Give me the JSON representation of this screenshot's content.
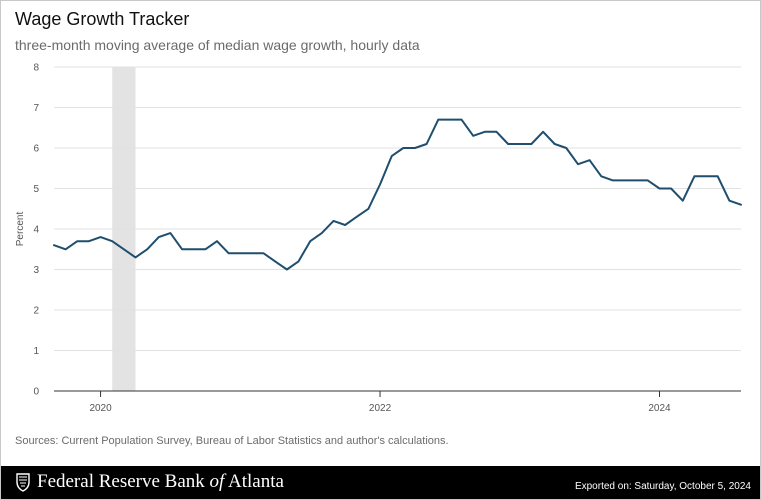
{
  "chart_data": {
    "type": "line",
    "title": "Wage Growth Tracker",
    "subtitle": "three-month moving average of median wage growth, hourly data",
    "xlabel": "",
    "ylabel": "Percent",
    "ylim": [
      0,
      8
    ],
    "xlim": [
      "2019-09",
      "2024-08"
    ],
    "yticks": [
      "0",
      "1",
      "2",
      "3",
      "4",
      "5",
      "6",
      "7",
      "8"
    ],
    "xticks": [
      "2020",
      "2022",
      "2024"
    ],
    "grid": true,
    "recession_shading": {
      "start": "2020-02",
      "end": "2020-04"
    },
    "line_color": "#1f4e6e",
    "series": [
      {
        "x": [
          "2019-09",
          "2019-10",
          "2019-11",
          "2019-12",
          "2020-01",
          "2020-02",
          "2020-03",
          "2020-04",
          "2020-05",
          "2020-06",
          "2020-07",
          "2020-08",
          "2020-09",
          "2020-10",
          "2020-11",
          "2020-12",
          "2021-01",
          "2021-02",
          "2021-03",
          "2021-04",
          "2021-05",
          "2021-06",
          "2021-07",
          "2021-08",
          "2021-09",
          "2021-10",
          "2021-11",
          "2021-12",
          "2022-01",
          "2022-02",
          "2022-03",
          "2022-04",
          "2022-05",
          "2022-06",
          "2022-07",
          "2022-08",
          "2022-09",
          "2022-10",
          "2022-11",
          "2022-12",
          "2023-01",
          "2023-02",
          "2023-03",
          "2023-04",
          "2023-05",
          "2023-06",
          "2023-07",
          "2023-08",
          "2023-09",
          "2023-10",
          "2023-11",
          "2023-12",
          "2024-01",
          "2024-02",
          "2024-03",
          "2024-04",
          "2024-05",
          "2024-06",
          "2024-07",
          "2024-08"
        ],
        "values": [
          3.6,
          3.5,
          3.7,
          3.7,
          3.8,
          3.7,
          3.5,
          3.3,
          3.5,
          3.8,
          3.9,
          3.5,
          3.5,
          3.5,
          3.7,
          3.4,
          3.4,
          3.4,
          3.4,
          3.2,
          3.0,
          3.2,
          3.7,
          3.9,
          4.2,
          4.1,
          4.3,
          4.5,
          5.1,
          5.8,
          6.0,
          6.0,
          6.1,
          6.7,
          6.7,
          6.7,
          6.3,
          6.4,
          6.4,
          6.1,
          6.1,
          6.1,
          6.4,
          6.1,
          6.0,
          5.6,
          5.7,
          5.3,
          5.2,
          5.2,
          5.2,
          5.2,
          5.0,
          5.0,
          4.7,
          5.3,
          5.3,
          5.3,
          4.7,
          4.6
        ]
      }
    ],
    "source": "Sources: Current Population Survey, Bureau of Labor Statistics and author's calculations."
  },
  "footer": {
    "brand_main": "Federal Reserve Bank ",
    "brand_of": "of",
    "brand_city": " Atlanta",
    "exported": "Exported on: Saturday, October 5, 2024",
    "logo_icon": "eagle-seal-icon"
  }
}
